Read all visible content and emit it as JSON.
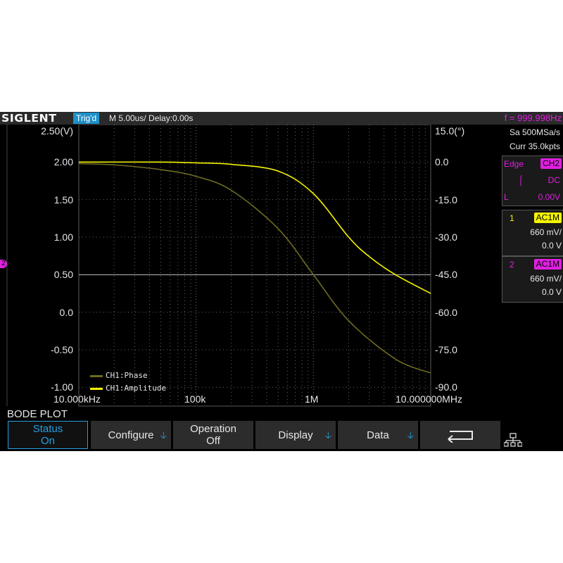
{
  "topbar": {
    "logo": "SIGLENT",
    "trigger_status": "Trig'd",
    "timebase": "M 5.00us/  Delay:0.00s",
    "frequency": "f = 999.998Hz"
  },
  "side_panel": {
    "sample_rate": "Sa 500MSa/s",
    "memory": "Curr 35.0kpts",
    "trigger": {
      "type": "Edge",
      "source": "CH2",
      "coupling": "DC",
      "level_label": "L",
      "level": "0.00V"
    },
    "channels": [
      {
        "number": "1",
        "coupling": "AC1M",
        "scale": "660 mV/",
        "offset": "0.0 V",
        "color": "#f5f500"
      },
      {
        "number": "2",
        "coupling": "AC1M",
        "scale": "660 mV/",
        "offset": "0.0 V",
        "color": "#e020e0"
      }
    ]
  },
  "left_marker": "2",
  "chart_data": {
    "type": "line",
    "x_scale": "log",
    "xlim": [
      10000,
      10000000
    ],
    "ylim": [
      -1.25,
      2.5
    ],
    "y2lim": [
      -97.5,
      15
    ],
    "x_tick_labels": [
      "10.000kHz",
      "100k",
      "1M",
      "10.000000MHz"
    ],
    "x_ticks": [
      10000,
      100000,
      1000000,
      10000000
    ],
    "y_ticks": [
      "2.50(V)",
      "2.00",
      "1.50",
      "1.00",
      "0.50",
      "0.0",
      "-0.50",
      "-1.00"
    ],
    "y2_ticks": [
      "15.0(°)",
      "0.0",
      "-15.0",
      "-30.0",
      "-45.0",
      "-60.0",
      "-75.0",
      "-90.0"
    ],
    "series": [
      {
        "name": "CH1:Phase",
        "axis": "y2",
        "color": "#6e6c20",
        "x": [
          10000,
          20000,
          50000,
          100000,
          200000,
          500000,
          1000000,
          2000000,
          5000000,
          10000000
        ],
        "y": [
          -0.6,
          -1.1,
          -3,
          -5.7,
          -11.3,
          -26.6,
          -45,
          -63.4,
          -78.7,
          -84.3
        ]
      },
      {
        "name": "CH1:Amplitude",
        "axis": "y",
        "color": "#f5f500",
        "x": [
          10000,
          50000,
          100000,
          200000,
          500000,
          1000000,
          2000000,
          3000000,
          5000000,
          10000000
        ],
        "y": [
          2.0,
          2.0,
          1.99,
          1.97,
          1.88,
          1.58,
          1.0,
          0.74,
          0.5,
          0.25
        ]
      }
    ],
    "reference_line": 0.5
  },
  "mode_label": "BODE PLOT",
  "softkeys": [
    {
      "line1": "Status",
      "line2": "On"
    },
    {
      "line1": "Configure",
      "line2": ""
    },
    {
      "line1": "Operation",
      "line2": "Off"
    },
    {
      "line1": "Display",
      "line2": ""
    },
    {
      "line1": "Data",
      "line2": ""
    }
  ]
}
